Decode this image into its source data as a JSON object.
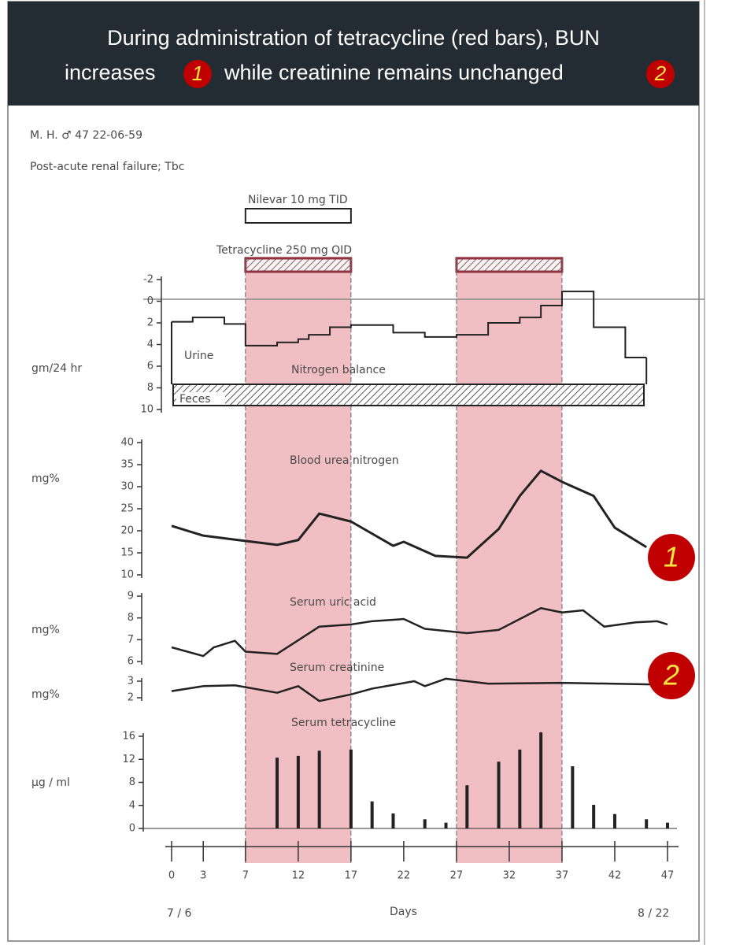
{
  "header": {
    "line1": "During administration of tetracycline (red bars), BUN",
    "line2_start": "increases",
    "badge1": "1",
    "line2_middle": "while creatinine remains unchanged",
    "badge2": "2"
  },
  "figure": {
    "patient": "M. H. ♂ 47   22-06-59",
    "diagnosis": "Post-acute renal failure; Tbc",
    "nilevar": "Nilevar 10 mg TID",
    "tetracycline": "Tetracycline 250 mg QID",
    "nilevar_period": [
      7,
      17
    ],
    "shaded_periods": [
      [
        7,
        17
      ],
      [
        27,
        37
      ]
    ],
    "annotation1": "1",
    "annotation2": "2"
  },
  "x_axis": {
    "label": "Days",
    "start_date": "7 / 6",
    "end_date": "8 / 22",
    "xlim": [
      0,
      47
    ],
    "xticks": [
      0,
      3,
      7,
      12,
      17,
      22,
      27,
      32,
      37,
      42,
      47
    ]
  },
  "chart_data": [
    {
      "type": "step",
      "title": "Nitrogen balance",
      "ylabel": "gm/24 hr",
      "urine_label": "Urine",
      "feces_label": "Feces",
      "y_direction": "down",
      "ylim": [
        -2,
        10
      ],
      "yticks": [
        -2,
        0,
        2,
        4,
        6,
        8,
        10
      ],
      "color": "#222",
      "x": [
        0,
        2,
        5,
        7,
        10,
        12,
        13,
        15,
        17,
        21,
        24,
        27,
        30,
        33,
        35,
        37,
        40,
        43,
        45
      ],
      "values": [
        1.9,
        1.5,
        2.1,
        4.1,
        3.8,
        3.5,
        3.1,
        2.4,
        2.2,
        2.9,
        3.3,
        3.1,
        2.0,
        1.5,
        0.4,
        -0.9,
        2.4,
        5.2,
        5.2
      ]
    },
    {
      "type": "line",
      "title": "Blood urea nitrogen",
      "ylabel": "mg%",
      "ylim": [
        10,
        40
      ],
      "yticks": [
        10,
        15,
        20,
        25,
        30,
        35,
        40
      ],
      "color": "#222",
      "x": [
        0,
        3,
        6,
        10,
        12,
        14,
        17,
        21,
        22,
        25,
        28,
        31,
        33,
        35,
        37,
        40,
        42,
        45
      ],
      "values": [
        21.1,
        18.9,
        18.0,
        16.8,
        17.9,
        23.9,
        22.1,
        16.6,
        17.5,
        14.3,
        13.9,
        20.4,
        27.9,
        33.6,
        31.1,
        27.9,
        20.7,
        16.3
      ]
    },
    {
      "type": "line",
      "title": "Serum uric acid",
      "ylabel": "mg%",
      "ylim": [
        6,
        9
      ],
      "yticks": [
        6,
        7,
        8,
        9
      ],
      "color": "#222",
      "x": [
        0,
        3,
        4,
        6,
        7,
        10,
        14,
        17,
        19,
        22,
        24,
        28,
        31,
        35,
        37,
        39,
        41,
        44,
        46,
        47
      ],
      "values": [
        6.65,
        6.25,
        6.65,
        6.95,
        6.45,
        6.35,
        7.6,
        7.7,
        7.85,
        7.95,
        7.5,
        7.3,
        7.45,
        8.45,
        8.25,
        8.35,
        7.6,
        7.8,
        7.85,
        7.7
      ]
    },
    {
      "type": "line",
      "title": "Serum creatinine",
      "ylabel": "mg%",
      "ylim": [
        2,
        3
      ],
      "yticks": [
        2,
        3
      ],
      "color": "#222",
      "x": [
        0,
        3,
        6,
        10,
        12,
        14,
        17,
        19,
        23,
        24,
        26,
        30,
        37,
        46
      ],
      "values": [
        2.4,
        2.7,
        2.75,
        2.3,
        2.7,
        1.8,
        2.2,
        2.55,
        3.0,
        2.7,
        3.15,
        2.85,
        2.9,
        2.8
      ]
    },
    {
      "type": "bar",
      "title": "Serum tetracycline",
      "ylabel": "μg / ml",
      "ylim": [
        0,
        16
      ],
      "yticks": [
        0,
        4,
        8,
        12,
        16
      ],
      "color": "#222",
      "x": [
        10,
        12,
        14,
        17,
        19,
        21,
        24,
        26,
        28,
        31,
        33,
        35,
        38,
        40,
        42,
        45,
        47
      ],
      "values": [
        12.3,
        12.6,
        13.5,
        13.7,
        4.7,
        2.6,
        1.6,
        1.0,
        7.5,
        11.6,
        13.7,
        16.7,
        10.8,
        4.1,
        2.5,
        1.6,
        1.0
      ]
    }
  ]
}
